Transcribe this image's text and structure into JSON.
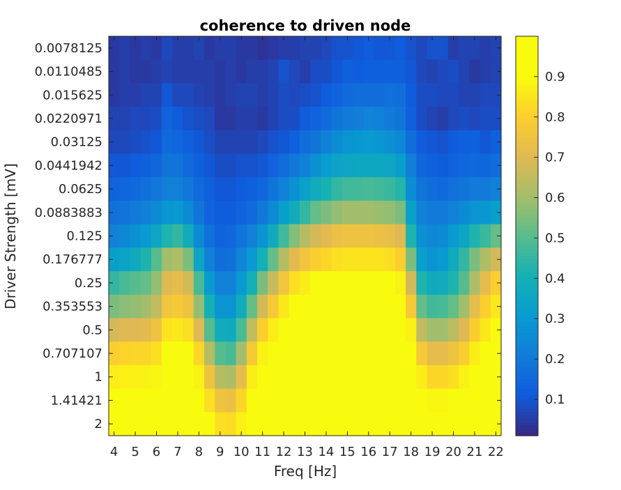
{
  "chart_data": {
    "type": "heatmap",
    "title": "coherence to driven node",
    "xlabel": "Freq [Hz]",
    "ylabel": "Driver Strength [mV]",
    "x_tick_labels": [
      "4",
      "5",
      "6",
      "7",
      "8",
      "9",
      "10",
      "11",
      "12",
      "13",
      "14",
      "15",
      "16",
      "17",
      "18",
      "19",
      "20",
      "21",
      "22"
    ],
    "x_values": [
      4,
      4.5,
      5,
      5.5,
      6,
      6.5,
      7,
      7.5,
      8,
      8.5,
      9,
      9.5,
      10,
      10.5,
      11,
      11.5,
      12,
      12.5,
      13,
      13.5,
      14,
      14.5,
      15,
      15.5,
      16,
      16.5,
      17,
      17.5,
      18,
      18.5,
      19,
      19.5,
      20,
      20.5,
      21,
      21.5,
      22
    ],
    "y_tick_labels": [
      "0.0078125",
      "0.0110485",
      "0.015625",
      "0.0220971",
      "0.03125",
      "0.0441942",
      "0.0625",
      "0.0883883",
      "0.125",
      "0.176777",
      "0.25",
      "0.353553",
      "0.5",
      "0.707107",
      "1",
      "1.41421",
      "2"
    ],
    "colorbar": {
      "ticks": [
        "0.1",
        "0.2",
        "0.3",
        "0.4",
        "0.5",
        "0.6",
        "0.7",
        "0.8",
        "0.9"
      ],
      "range": [
        0.01,
        1.0
      ],
      "colormap": "parula"
    },
    "grid": false,
    "rows": [
      [
        0.04,
        0.05,
        0.04,
        0.05,
        0.04,
        0.07,
        0.05,
        0.05,
        0.06,
        0.04,
        0.05,
        0.05,
        0.04,
        0.04,
        0.03,
        0.04,
        0.05,
        0.05,
        0.06,
        0.06,
        0.07,
        0.09,
        0.09,
        0.1,
        0.11,
        0.1,
        0.1,
        0.11,
        0.09,
        0.07,
        0.09,
        0.09,
        0.05,
        0.06,
        0.06,
        0.05,
        0.06
      ],
      [
        0.04,
        0.05,
        0.04,
        0.04,
        0.05,
        0.06,
        0.05,
        0.05,
        0.05,
        0.05,
        0.04,
        0.05,
        0.04,
        0.05,
        0.05,
        0.06,
        0.09,
        0.07,
        0.05,
        0.08,
        0.08,
        0.1,
        0.12,
        0.11,
        0.12,
        0.12,
        0.12,
        0.12,
        0.1,
        0.07,
        0.06,
        0.07,
        0.08,
        0.06,
        0.04,
        0.05,
        0.06
      ],
      [
        0.04,
        0.05,
        0.05,
        0.06,
        0.06,
        0.1,
        0.07,
        0.07,
        0.06,
        0.05,
        0.04,
        0.05,
        0.06,
        0.06,
        0.05,
        0.06,
        0.08,
        0.07,
        0.08,
        0.09,
        0.11,
        0.13,
        0.15,
        0.16,
        0.16,
        0.16,
        0.17,
        0.16,
        0.11,
        0.08,
        0.08,
        0.07,
        0.07,
        0.06,
        0.06,
        0.07,
        0.07
      ],
      [
        0.06,
        0.06,
        0.07,
        0.07,
        0.08,
        0.13,
        0.11,
        0.09,
        0.08,
        0.07,
        0.04,
        0.04,
        0.05,
        0.05,
        0.04,
        0.06,
        0.08,
        0.08,
        0.11,
        0.13,
        0.15,
        0.18,
        0.2,
        0.21,
        0.23,
        0.22,
        0.2,
        0.18,
        0.12,
        0.08,
        0.06,
        0.05,
        0.07,
        0.08,
        0.07,
        0.08,
        0.08
      ],
      [
        0.07,
        0.07,
        0.08,
        0.09,
        0.1,
        0.15,
        0.14,
        0.12,
        0.1,
        0.08,
        0.06,
        0.06,
        0.06,
        0.06,
        0.07,
        0.09,
        0.1,
        0.12,
        0.16,
        0.18,
        0.22,
        0.26,
        0.28,
        0.29,
        0.3,
        0.29,
        0.27,
        0.24,
        0.16,
        0.11,
        0.1,
        0.09,
        0.11,
        0.12,
        0.12,
        0.1,
        0.12
      ],
      [
        0.1,
        0.1,
        0.11,
        0.12,
        0.14,
        0.18,
        0.18,
        0.15,
        0.12,
        0.1,
        0.08,
        0.08,
        0.09,
        0.09,
        0.1,
        0.13,
        0.16,
        0.19,
        0.22,
        0.27,
        0.31,
        0.34,
        0.35,
        0.36,
        0.36,
        0.36,
        0.35,
        0.32,
        0.21,
        0.14,
        0.12,
        0.11,
        0.13,
        0.14,
        0.15,
        0.14,
        0.16
      ],
      [
        0.13,
        0.14,
        0.15,
        0.17,
        0.19,
        0.22,
        0.22,
        0.19,
        0.15,
        0.12,
        0.1,
        0.1,
        0.11,
        0.12,
        0.14,
        0.18,
        0.22,
        0.27,
        0.33,
        0.38,
        0.41,
        0.45,
        0.47,
        0.47,
        0.48,
        0.47,
        0.46,
        0.43,
        0.26,
        0.18,
        0.16,
        0.15,
        0.17,
        0.18,
        0.2,
        0.2,
        0.22
      ],
      [
        0.17,
        0.18,
        0.2,
        0.22,
        0.25,
        0.29,
        0.3,
        0.25,
        0.18,
        0.13,
        0.11,
        0.11,
        0.13,
        0.15,
        0.19,
        0.25,
        0.32,
        0.38,
        0.45,
        0.52,
        0.55,
        0.58,
        0.6,
        0.6,
        0.6,
        0.59,
        0.58,
        0.55,
        0.33,
        0.22,
        0.2,
        0.2,
        0.22,
        0.25,
        0.28,
        0.29,
        0.32
      ],
      [
        0.22,
        0.24,
        0.27,
        0.3,
        0.35,
        0.42,
        0.45,
        0.38,
        0.25,
        0.17,
        0.13,
        0.14,
        0.18,
        0.22,
        0.28,
        0.37,
        0.47,
        0.56,
        0.63,
        0.68,
        0.71,
        0.74,
        0.75,
        0.75,
        0.75,
        0.74,
        0.73,
        0.7,
        0.42,
        0.27,
        0.24,
        0.25,
        0.3,
        0.35,
        0.42,
        0.46,
        0.52
      ],
      [
        0.32,
        0.34,
        0.37,
        0.42,
        0.5,
        0.6,
        0.62,
        0.55,
        0.35,
        0.22,
        0.16,
        0.17,
        0.23,
        0.3,
        0.4,
        0.52,
        0.63,
        0.71,
        0.76,
        0.8,
        0.82,
        0.84,
        0.85,
        0.85,
        0.85,
        0.85,
        0.84,
        0.8,
        0.55,
        0.32,
        0.28,
        0.3,
        0.37,
        0.45,
        0.55,
        0.62,
        0.68
      ],
      [
        0.45,
        0.48,
        0.5,
        0.52,
        0.58,
        0.7,
        0.72,
        0.68,
        0.48,
        0.3,
        0.22,
        0.22,
        0.3,
        0.4,
        0.55,
        0.66,
        0.76,
        0.84,
        0.87,
        0.9,
        0.91,
        0.91,
        0.92,
        0.91,
        0.91,
        0.91,
        0.9,
        0.88,
        0.68,
        0.42,
        0.37,
        0.38,
        0.42,
        0.5,
        0.62,
        0.72,
        0.8
      ],
      [
        0.55,
        0.57,
        0.58,
        0.6,
        0.65,
        0.76,
        0.78,
        0.75,
        0.58,
        0.4,
        0.28,
        0.28,
        0.38,
        0.52,
        0.68,
        0.78,
        0.86,
        0.91,
        0.93,
        0.94,
        0.94,
        0.94,
        0.94,
        0.94,
        0.94,
        0.94,
        0.93,
        0.92,
        0.78,
        0.52,
        0.47,
        0.48,
        0.52,
        0.6,
        0.72,
        0.8,
        0.86
      ],
      [
        0.68,
        0.7,
        0.7,
        0.71,
        0.75,
        0.85,
        0.86,
        0.84,
        0.7,
        0.5,
        0.38,
        0.37,
        0.48,
        0.65,
        0.8,
        0.87,
        0.92,
        0.95,
        0.96,
        0.97,
        0.97,
        0.97,
        0.97,
        0.97,
        0.97,
        0.97,
        0.97,
        0.96,
        0.88,
        0.65,
        0.6,
        0.6,
        0.64,
        0.7,
        0.8,
        0.86,
        0.9
      ],
      [
        0.8,
        0.81,
        0.82,
        0.82,
        0.84,
        0.91,
        0.92,
        0.91,
        0.82,
        0.63,
        0.5,
        0.48,
        0.6,
        0.78,
        0.88,
        0.93,
        0.95,
        0.97,
        0.98,
        0.98,
        0.98,
        0.98,
        0.98,
        0.98,
        0.98,
        0.98,
        0.98,
        0.98,
        0.93,
        0.78,
        0.72,
        0.72,
        0.75,
        0.8,
        0.87,
        0.91,
        0.94
      ],
      [
        0.87,
        0.88,
        0.88,
        0.88,
        0.89,
        0.94,
        0.95,
        0.94,
        0.88,
        0.75,
        0.63,
        0.62,
        0.72,
        0.87,
        0.93,
        0.95,
        0.97,
        0.98,
        0.99,
        0.99,
        0.99,
        0.99,
        0.99,
        0.99,
        0.99,
        0.99,
        0.99,
        0.99,
        0.96,
        0.87,
        0.82,
        0.82,
        0.84,
        0.88,
        0.92,
        0.94,
        0.96
      ],
      [
        0.91,
        0.91,
        0.91,
        0.92,
        0.92,
        0.96,
        0.96,
        0.96,
        0.92,
        0.84,
        0.75,
        0.74,
        0.82,
        0.92,
        0.96,
        0.97,
        0.98,
        0.99,
        0.99,
        0.99,
        0.99,
        0.99,
        0.99,
        0.99,
        0.99,
        0.99,
        0.99,
        0.99,
        0.98,
        0.92,
        0.89,
        0.89,
        0.9,
        0.92,
        0.95,
        0.96,
        0.97
      ],
      [
        0.93,
        0.93,
        0.94,
        0.94,
        0.95,
        0.97,
        0.97,
        0.97,
        0.95,
        0.9,
        0.84,
        0.83,
        0.88,
        0.95,
        0.97,
        0.98,
        0.99,
        0.99,
        0.99,
        0.99,
        0.99,
        0.99,
        0.99,
        0.99,
        0.99,
        0.99,
        0.99,
        0.99,
        0.99,
        0.95,
        0.93,
        0.93,
        0.94,
        0.95,
        0.96,
        0.97,
        0.98
      ]
    ]
  }
}
